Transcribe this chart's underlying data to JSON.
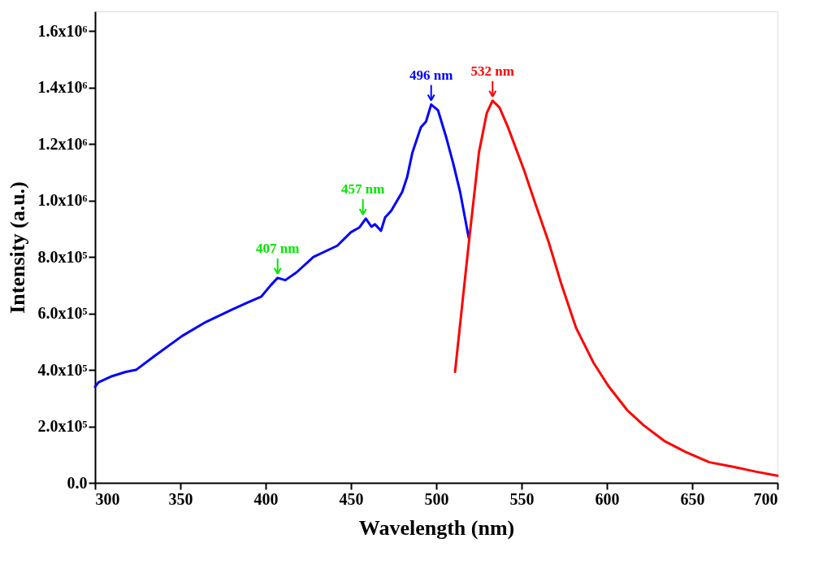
{
  "chart_data": {
    "type": "line",
    "xlabel": "Wavelength (nm)",
    "ylabel": "Intensity (a.u.)",
    "xlim": [
      300,
      700
    ],
    "xticks": [
      300,
      350,
      400,
      450,
      500,
      550,
      600,
      650,
      700
    ],
    "ylim": [
      0,
      1670000
    ],
    "yticks": [
      {
        "value": 0,
        "label": "0.0"
      },
      {
        "value": 200000,
        "label": "2.0x10⁵"
      },
      {
        "value": 400000,
        "label": "4.0x10⁵"
      },
      {
        "value": 600000,
        "label": "6.0x10⁵"
      },
      {
        "value": 800000,
        "label": "8.0x10⁵"
      },
      {
        "value": 1000000,
        "label": "1.0x10⁶"
      },
      {
        "value": 1200000,
        "label": "1.2x10⁶"
      },
      {
        "value": 1400000,
        "label": "1.4x10⁶"
      },
      {
        "value": 1600000,
        "label": "1.6x10⁶"
      }
    ],
    "grid": false,
    "marker": "none",
    "line_style": "solid",
    "series": [
      {
        "color": "#0000ff",
        "x": [
          300,
          302,
          310,
          318,
          324,
          335,
          351,
          365,
          380,
          390,
          397.5,
          403,
          407,
          411.5,
          418,
          428,
          442,
          450,
          455,
          458.7,
          462,
          464,
          467.6,
          470,
          473.6,
          480,
          483,
          486,
          491,
          494,
          497,
          501,
          506,
          510,
          514,
          519
        ],
        "values": [
          340000,
          356000,
          378000,
          393000,
          400000,
          450000,
          520000,
          570000,
          613000,
          640000,
          660000,
          700000,
          726000,
          718000,
          745000,
          800000,
          840000,
          888000,
          905000,
          936000,
          907000,
          916000,
          893000,
          940000,
          964000,
          1030000,
          1085000,
          1170000,
          1260000,
          1280000,
          1340000,
          1320000,
          1220000,
          1130000,
          1030000,
          868000
        ]
      },
      {
        "color": "#ff0000",
        "x": [
          511,
          515,
          519.4,
          525,
          529.6,
          533,
          537,
          542,
          551.6,
          558,
          566,
          573,
          582,
          592,
          601,
          612,
          621.5,
          634,
          646,
          660,
          674,
          687,
          700
        ],
        "values": [
          393000,
          620000,
          868000,
          1170000,
          1310000,
          1354000,
          1330000,
          1260000,
          1105000,
          990000,
          850000,
          710000,
          548000,
          427000,
          342000,
          257000,
          204000,
          147000,
          110000,
          73000,
          57000,
          40000,
          25000
        ]
      }
    ],
    "annotations": [
      {
        "text": "407 nm",
        "x": 407,
        "y": 726000
      },
      {
        "text": "457 nm",
        "x": 457,
        "y": 936000
      },
      {
        "text": "496 nm",
        "x": 497,
        "y": 1340000
      },
      {
        "text": "532 nm",
        "x": 533,
        "y": 1354000
      }
    ]
  }
}
